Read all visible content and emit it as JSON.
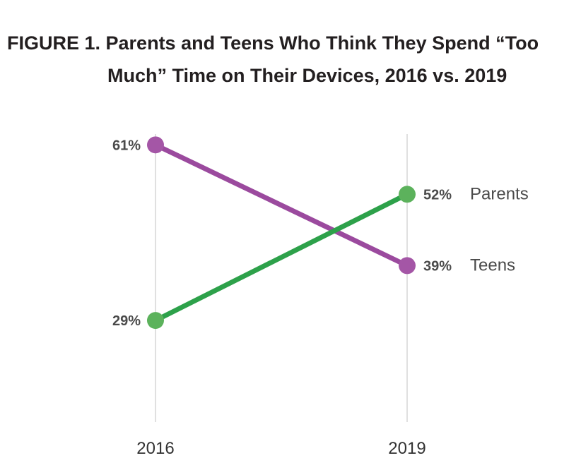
{
  "chart_data": {
    "type": "line",
    "title_line1": "FIGURE 1. Parents and Teens Who Think They Spend “Too",
    "title_line2": "Much” Time on Their Devices, 2016 vs. 2019",
    "categories": [
      "2016",
      "2019"
    ],
    "ylim": [
      0,
      100
    ],
    "series": [
      {
        "name": "Teens",
        "values": [
          61,
          39
        ],
        "labels": [
          "61%",
          "39%"
        ],
        "color": "#9b4a9e",
        "marker_color": "#a456a6"
      },
      {
        "name": "Parents",
        "values": [
          29,
          52
        ],
        "labels": [
          "29%",
          "52%"
        ],
        "color": "#2da14a",
        "marker_color": "#5cb25c"
      }
    ],
    "gridline_color": "#cccccc"
  }
}
